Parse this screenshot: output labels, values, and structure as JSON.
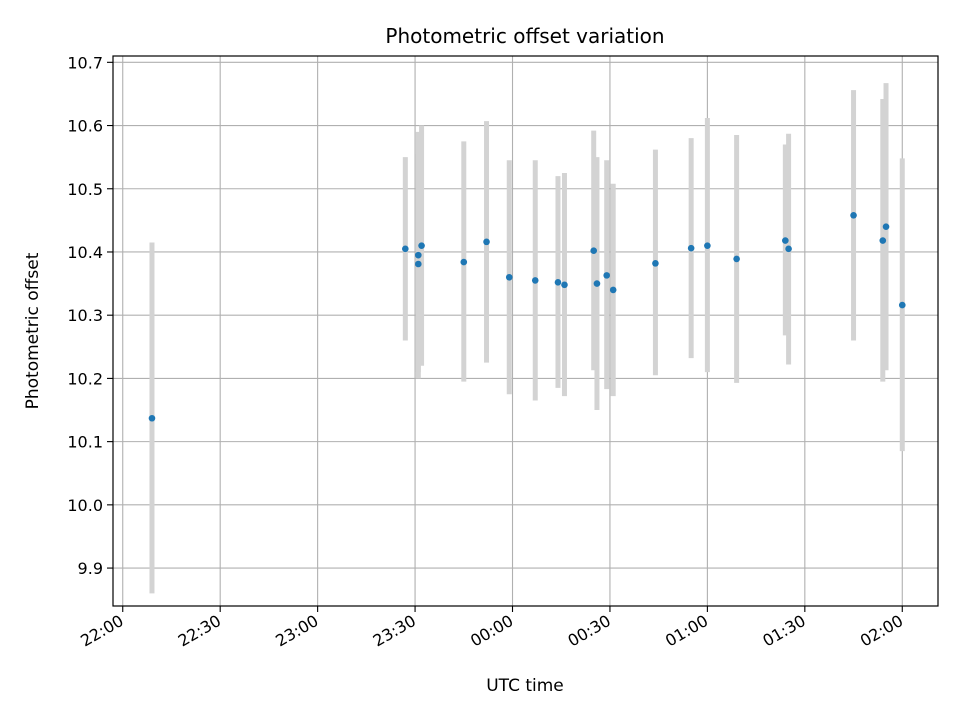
{
  "chart_data": {
    "type": "scatter",
    "title": "Photometric offset variation",
    "xlabel": "UTC time",
    "ylabel": "Photometric offset",
    "x_ticks": [
      "22:00",
      "22:30",
      "23:00",
      "23:30",
      "00:00",
      "00:30",
      "01:00",
      "01:30",
      "02:00"
    ],
    "y_ticks": [
      "9.9",
      "10.0",
      "10.1",
      "10.2",
      "10.3",
      "10.4",
      "10.5",
      "10.6",
      "10.7"
    ],
    "xlim": [
      "21:57",
      "02:11"
    ],
    "ylim": [
      9.84,
      10.71
    ],
    "grid": true,
    "point_color": "#1f77b4",
    "errorbar_color": "#d3d3d3",
    "points": [
      {
        "x": "22:09",
        "y": 10.137,
        "lo": 9.86,
        "hi": 10.415
      },
      {
        "x": "23:27",
        "y": 10.405,
        "lo": 10.26,
        "hi": 10.55
      },
      {
        "x": "23:31",
        "y": 10.381,
        "lo": 10.2,
        "hi": 10.555
      },
      {
        "x": "23:31",
        "y": 10.395,
        "lo": 10.21,
        "hi": 10.59
      },
      {
        "x": "23:32",
        "y": 10.41,
        "lo": 10.22,
        "hi": 10.6
      },
      {
        "x": "23:45",
        "y": 10.384,
        "lo": 10.195,
        "hi": 10.575
      },
      {
        "x": "23:52",
        "y": 10.416,
        "lo": 10.225,
        "hi": 10.607
      },
      {
        "x": "23:59",
        "y": 10.36,
        "lo": 10.175,
        "hi": 10.545
      },
      {
        "x": "00:07",
        "y": 10.355,
        "lo": 10.165,
        "hi": 10.545
      },
      {
        "x": "00:14",
        "y": 10.352,
        "lo": 10.185,
        "hi": 10.52
      },
      {
        "x": "00:16",
        "y": 10.348,
        "lo": 10.172,
        "hi": 10.525
      },
      {
        "x": "00:25",
        "y": 10.402,
        "lo": 10.213,
        "hi": 10.592
      },
      {
        "x": "00:26",
        "y": 10.35,
        "lo": 10.15,
        "hi": 10.55
      },
      {
        "x": "00:29",
        "y": 10.363,
        "lo": 10.183,
        "hi": 10.545
      },
      {
        "x": "00:31",
        "y": 10.34,
        "lo": 10.172,
        "hi": 10.508
      },
      {
        "x": "00:44",
        "y": 10.382,
        "lo": 10.205,
        "hi": 10.562
      },
      {
        "x": "00:55",
        "y": 10.406,
        "lo": 10.232,
        "hi": 10.58
      },
      {
        "x": "01:00",
        "y": 10.41,
        "lo": 10.21,
        "hi": 10.612
      },
      {
        "x": "01:09",
        "y": 10.389,
        "lo": 10.193,
        "hi": 10.585
      },
      {
        "x": "01:24",
        "y": 10.418,
        "lo": 10.268,
        "hi": 10.57
      },
      {
        "x": "01:25",
        "y": 10.405,
        "lo": 10.222,
        "hi": 10.587
      },
      {
        "x": "01:45",
        "y": 10.458,
        "lo": 10.26,
        "hi": 10.656
      },
      {
        "x": "01:54",
        "y": 10.418,
        "lo": 10.195,
        "hi": 10.642
      },
      {
        "x": "01:55",
        "y": 10.44,
        "lo": 10.213,
        "hi": 10.667
      },
      {
        "x": "02:00",
        "y": 10.316,
        "lo": 10.085,
        "hi": 10.548
      }
    ]
  }
}
